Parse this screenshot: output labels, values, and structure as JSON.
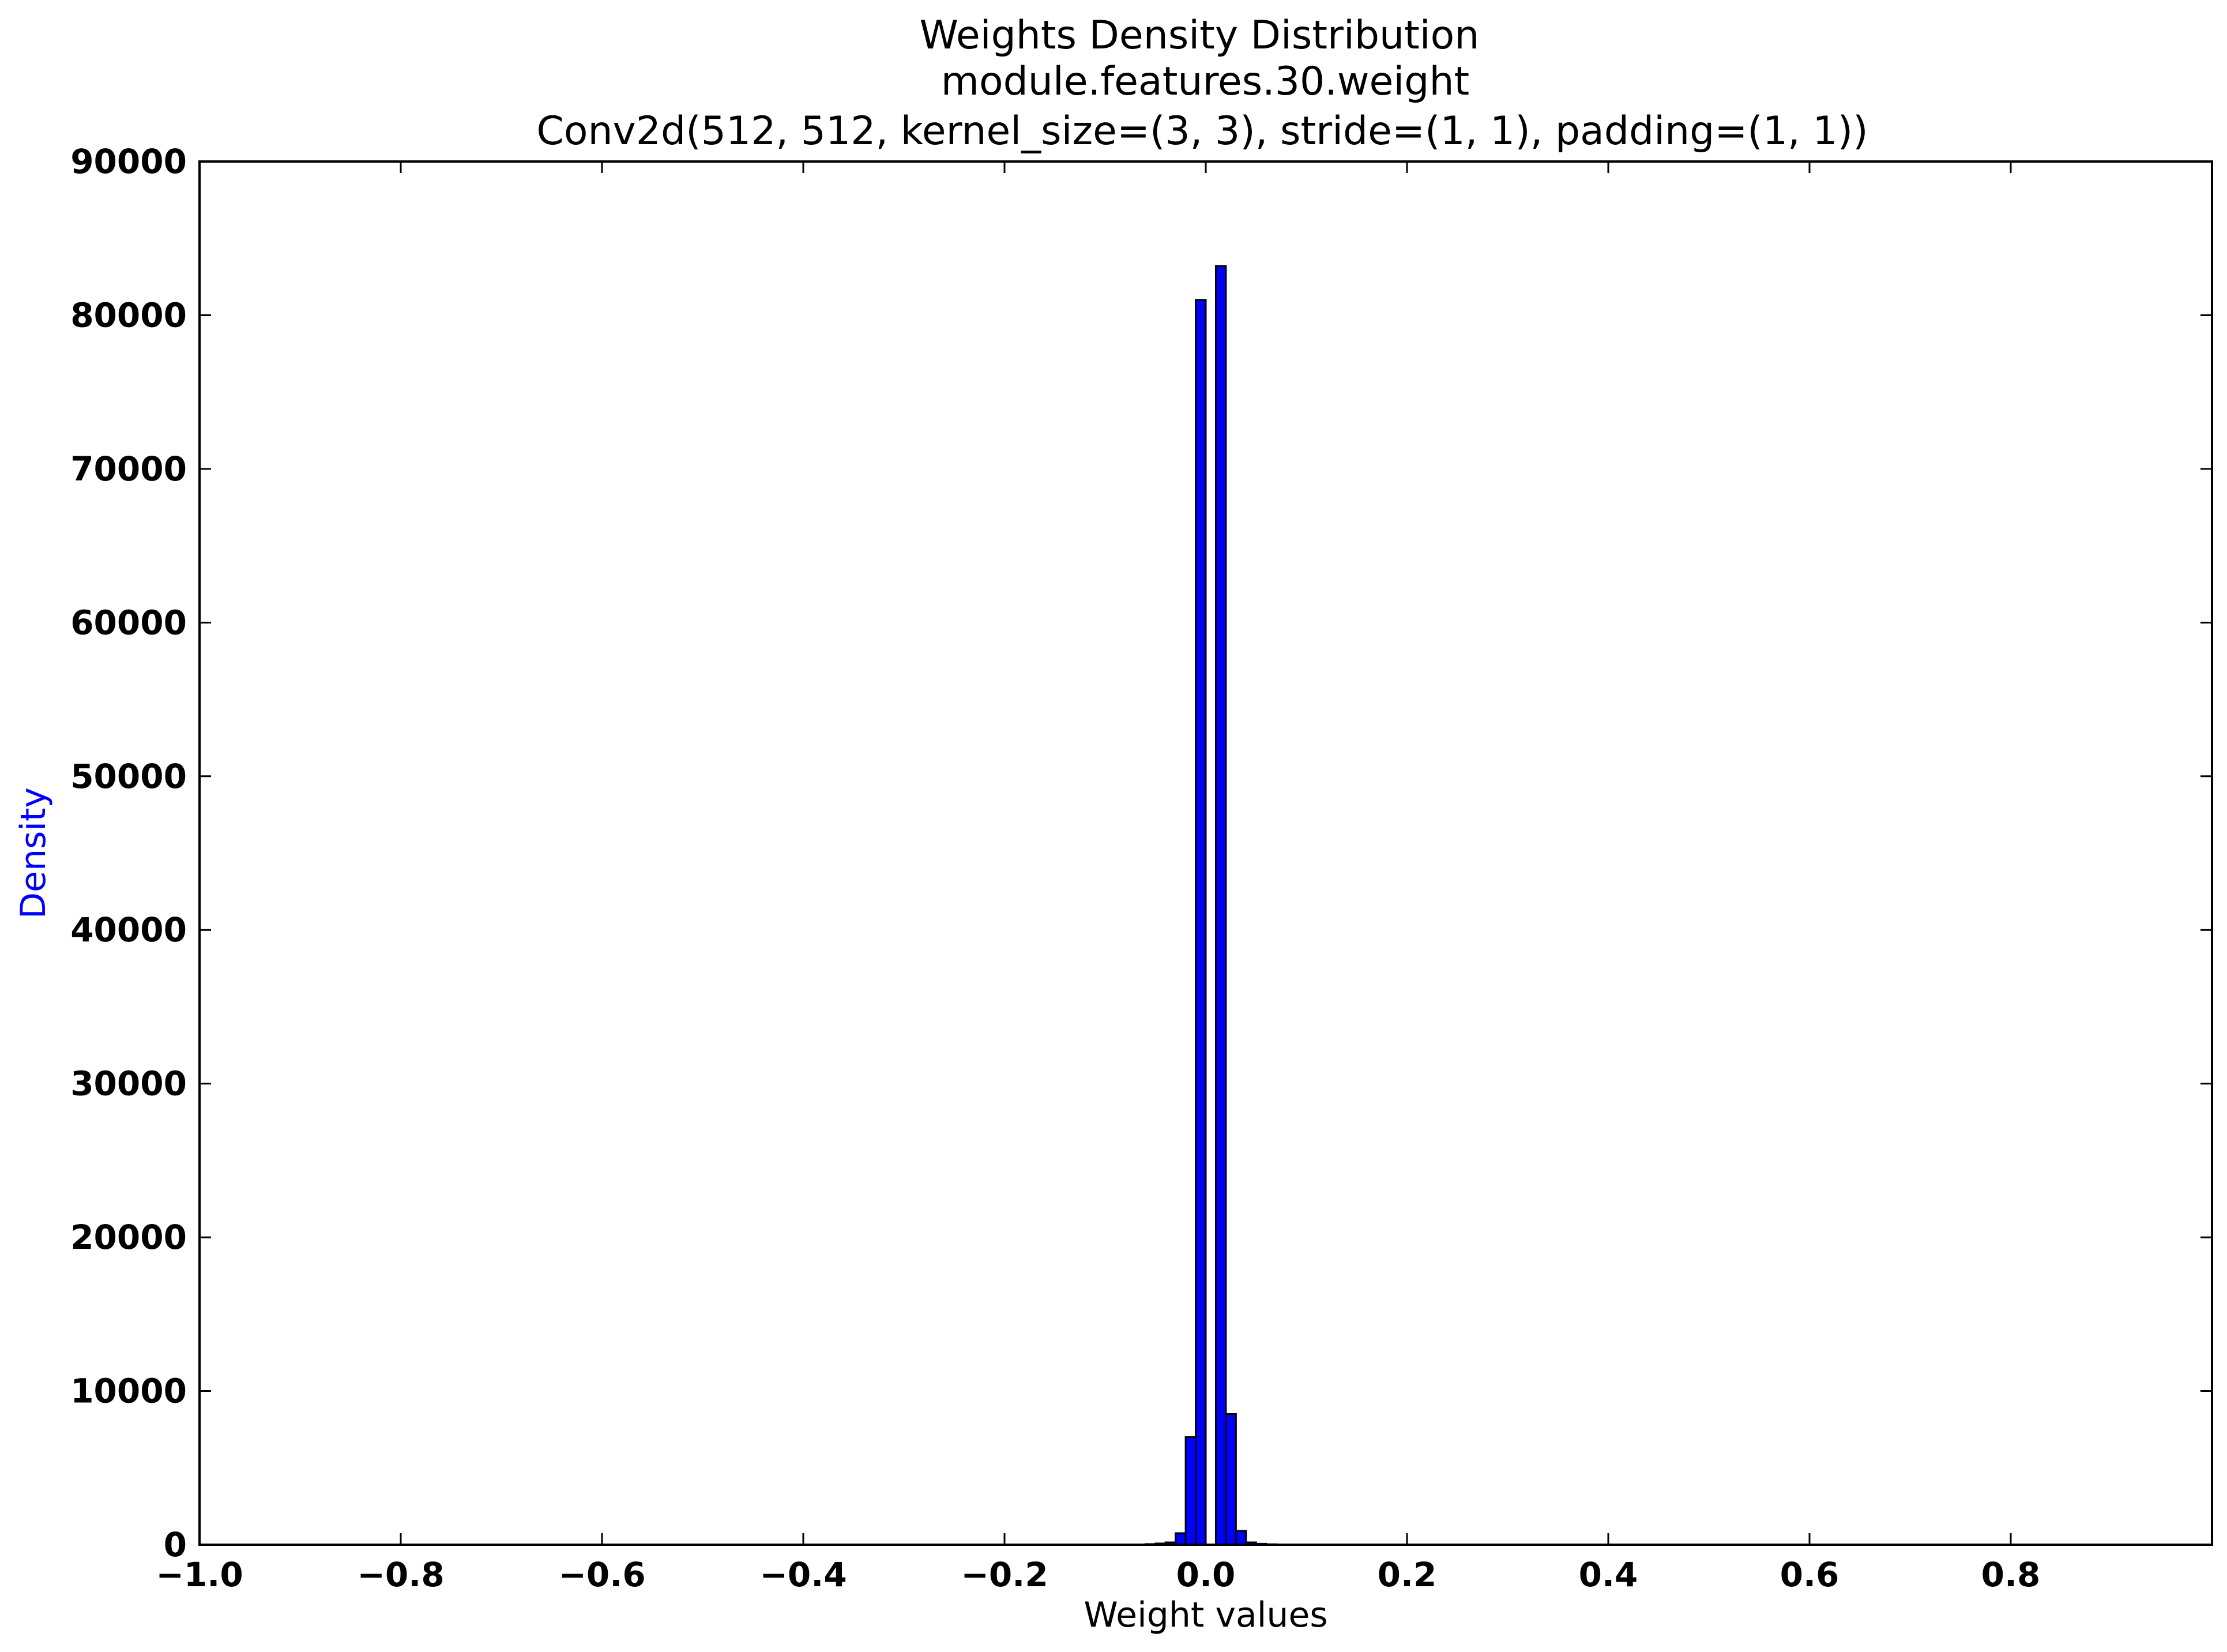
{
  "chart_data": {
    "type": "bar",
    "title_lines": [
      "Weights Density Distribution",
      "module.features.30.weight",
      "Conv2d(512, 512, kernel_size=(3, 3), stride=(1, 1), padding=(1, 1))"
    ],
    "xlabel": "Weight values",
    "ylabel": "Density",
    "xlim": [
      -1.0,
      1.0
    ],
    "ylim": [
      0,
      90000
    ],
    "x_ticks": [
      -1.0,
      -0.8,
      -0.6,
      -0.4,
      -0.2,
      0.0,
      0.2,
      0.4,
      0.6,
      0.8
    ],
    "x_tick_labels": [
      "−1.0",
      "−0.8",
      "−0.6",
      "−0.4",
      "−0.2",
      "0.0",
      "0.2",
      "0.4",
      "0.6",
      "0.8"
    ],
    "y_ticks": [
      0,
      10000,
      20000,
      30000,
      40000,
      50000,
      60000,
      70000,
      80000,
      90000
    ],
    "y_tick_labels": [
      "0",
      "10000",
      "20000",
      "30000",
      "40000",
      "50000",
      "60000",
      "70000",
      "80000",
      "90000"
    ],
    "bin_width": 0.01,
    "bins": [
      {
        "x0": -0.06,
        "value": 40
      },
      {
        "x0": -0.05,
        "value": 80
      },
      {
        "x0": -0.04,
        "value": 150
      },
      {
        "x0": -0.03,
        "value": 750
      },
      {
        "x0": -0.02,
        "value": 7000
      },
      {
        "x0": -0.01,
        "value": 81000
      },
      {
        "x0": 0.0,
        "value": 0
      },
      {
        "x0": 0.01,
        "value": 83200
      },
      {
        "x0": 0.02,
        "value": 8500
      },
      {
        "x0": 0.03,
        "value": 900
      },
      {
        "x0": 0.04,
        "value": 150
      },
      {
        "x0": 0.05,
        "value": 60
      },
      {
        "x0": 0.06,
        "value": 30
      }
    ],
    "bar_color": "#0000ff",
    "bar_edge_color": "#000000",
    "ylabel_color": "#0000ff",
    "grid": false
  }
}
